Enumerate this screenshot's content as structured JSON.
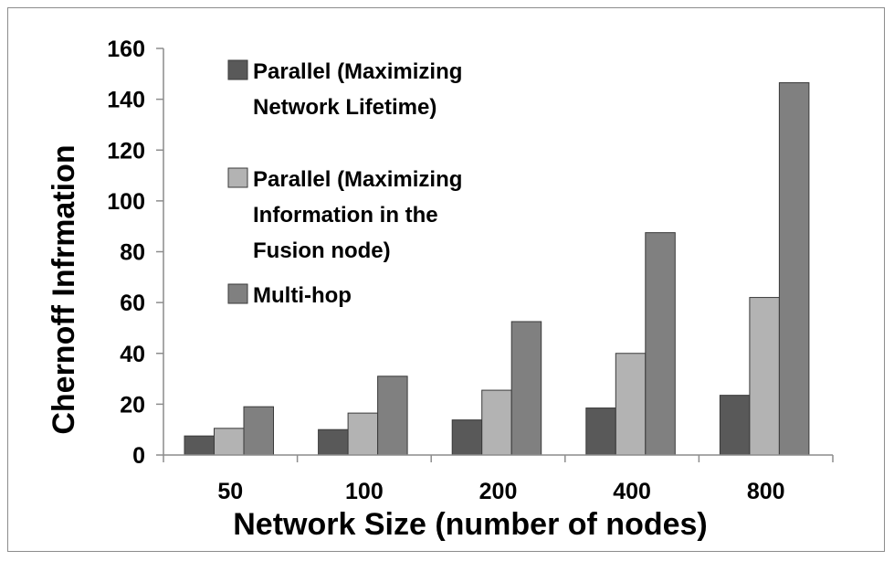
{
  "chart_data": {
    "type": "bar",
    "title": "",
    "xlabel": "Network Size (number of nodes)",
    "ylabel": "Chernoff Infrmation",
    "categories": [
      "50",
      "100",
      "200",
      "400",
      "800"
    ],
    "ylim": [
      0,
      160
    ],
    "yticks": [
      "0",
      "20",
      "40",
      "60",
      "80",
      "100",
      "120",
      "140",
      "160"
    ],
    "grid": false,
    "legend_position": "top-left",
    "series": [
      {
        "name_lines": [
          "Parallel (Maximizing",
          "Network Lifetime)"
        ],
        "color": "#595959",
        "values": [
          7.5,
          10,
          13.8,
          18.5,
          23.5
        ]
      },
      {
        "name_lines": [
          "Parallel (Maximizing",
          "Information in the",
          "Fusion node)"
        ],
        "color": "#b3b3b3",
        "values": [
          10.5,
          16.5,
          25.5,
          40,
          62
        ]
      },
      {
        "name_lines": [
          "Multi-hop"
        ],
        "color": "#808080",
        "values": [
          19,
          31,
          52.5,
          87.5,
          146.5
        ]
      }
    ]
  }
}
